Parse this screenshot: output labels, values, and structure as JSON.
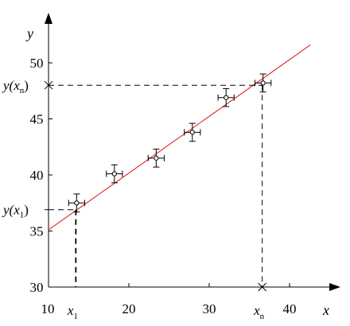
{
  "chart_data": {
    "type": "scatter",
    "title": "",
    "xlabel": "x",
    "ylabel": "y",
    "xlim": [
      10,
      45
    ],
    "ylim": [
      30,
      55
    ],
    "x_ticks": [
      10,
      20,
      30,
      40
    ],
    "y_ticks": [
      30,
      35,
      40,
      45,
      50
    ],
    "grid": false,
    "legend": "none",
    "points": [
      {
        "x": 13.5,
        "y": 37.5,
        "xerr": 1.0,
        "yerr": 0.8
      },
      {
        "x": 18.2,
        "y": 40.1,
        "xerr": 1.0,
        "yerr": 0.8
      },
      {
        "x": 23.4,
        "y": 41.5,
        "xerr": 1.0,
        "yerr": 0.8
      },
      {
        "x": 27.9,
        "y": 43.8,
        "xerr": 1.0,
        "yerr": 0.8
      },
      {
        "x": 32.1,
        "y": 46.9,
        "xerr": 1.0,
        "yerr": 0.8
      },
      {
        "x": 36.7,
        "y": 48.2,
        "xerr": 1.0,
        "yerr": 0.8
      }
    ],
    "fit_line": {
      "x1": 10,
      "y1": 35.1,
      "x2": 42.6,
      "y2": 51.6,
      "color": "#dd2222"
    },
    "guides": [
      {
        "x": 13.4,
        "y": 36.9,
        "x_label": "x",
        "x_sub": "1",
        "y_label": "y(x",
        "y_sub": "1",
        "y_close": ")"
      },
      {
        "x": 36.6,
        "y": 48.0,
        "x_label": "x",
        "x_sub": "n",
        "y_label": "y(x",
        "y_sub": "n",
        "y_close": ")"
      }
    ],
    "colors": {
      "axis": "#000000",
      "fit": "#dd2222",
      "points": "#000000"
    }
  }
}
